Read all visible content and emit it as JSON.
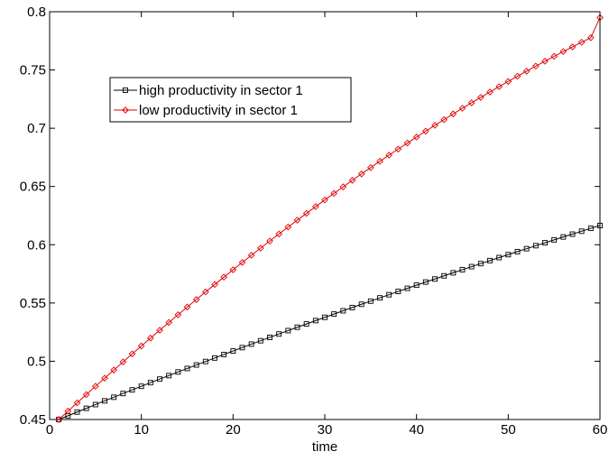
{
  "chart_data": {
    "type": "line",
    "title": "",
    "xlabel": "time",
    "ylabel": "",
    "xlim": [
      0,
      60
    ],
    "ylim": [
      0.45,
      0.8
    ],
    "x_ticks": [
      0,
      10,
      20,
      30,
      40,
      50,
      60
    ],
    "y_ticks": [
      0.45,
      0.5,
      0.55,
      0.6,
      0.65,
      0.7,
      0.75,
      0.8
    ],
    "x_tick_labels": [
      "0",
      "10",
      "20",
      "30",
      "40",
      "50",
      "60"
    ],
    "y_tick_labels": [
      "0.45",
      "0.5",
      "0.55",
      "0.6",
      "0.65",
      "0.7",
      "0.75",
      "0.8"
    ],
    "grid": false,
    "legend_position": "top-left",
    "x_start": 1,
    "x_end": 60,
    "x_step": 1,
    "series": [
      {
        "name": "high productivity in sector 1",
        "color": "#000000",
        "marker": "square",
        "values": [
          0.45,
          0.4532,
          0.4564,
          0.4596,
          0.4628,
          0.466,
          0.4691,
          0.4723,
          0.4754,
          0.4785,
          0.4816,
          0.4847,
          0.4877,
          0.4908,
          0.4938,
          0.4968,
          0.4998,
          0.5028,
          0.5058,
          0.5088,
          0.5117,
          0.5147,
          0.5176,
          0.5205,
          0.5234,
          0.5263,
          0.5292,
          0.532,
          0.5349,
          0.5377,
          0.5405,
          0.5433,
          0.5461,
          0.5489,
          0.5516,
          0.5544,
          0.5571,
          0.5599,
          0.5626,
          0.5653,
          0.568,
          0.5706,
          0.5733,
          0.5759,
          0.5786,
          0.5812,
          0.5838,
          0.5864,
          0.589,
          0.5915,
          0.5941,
          0.5966,
          0.5992,
          0.6017,
          0.6042,
          0.6067,
          0.6091,
          0.6116,
          0.6141,
          0.6165
        ]
      },
      {
        "name": "low productivity in sector 1",
        "color": "#e00000",
        "marker": "diamond",
        "values": [
          0.45,
          0.4572,
          0.4643,
          0.4714,
          0.4785,
          0.4855,
          0.4925,
          0.4994,
          0.5063,
          0.5131,
          0.5199,
          0.5266,
          0.5333,
          0.5399,
          0.5465,
          0.553,
          0.5595,
          0.5659,
          0.5722,
          0.5785,
          0.5848,
          0.591,
          0.5971,
          0.6032,
          0.6092,
          0.6152,
          0.6211,
          0.6269,
          0.6327,
          0.6385,
          0.6441,
          0.6497,
          0.6553,
          0.6608,
          0.6662,
          0.6716,
          0.6769,
          0.6821,
          0.6873,
          0.6924,
          0.6975,
          0.7025,
          0.7074,
          0.7123,
          0.7171,
          0.7218,
          0.7265,
          0.7311,
          0.7357,
          0.7402,
          0.7446,
          0.749,
          0.7533,
          0.7575,
          0.7617,
          0.7658,
          0.7698,
          0.7738,
          0.7777,
          0.795
        ]
      }
    ]
  }
}
